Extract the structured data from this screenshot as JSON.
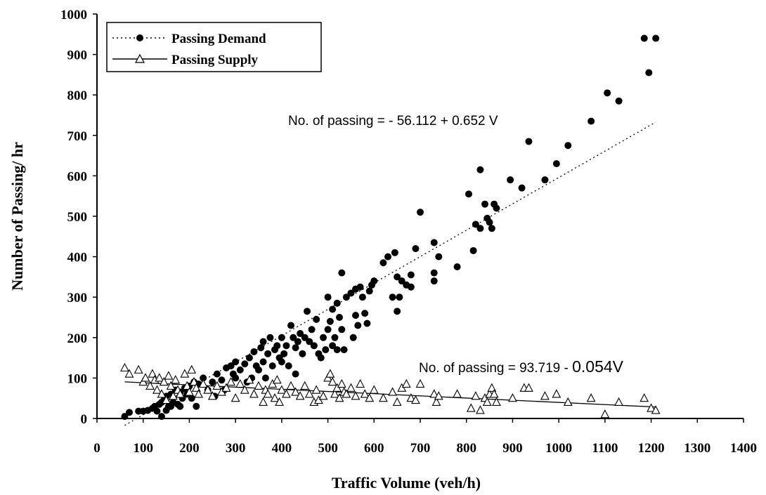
{
  "chart_data": {
    "type": "scatter",
    "xlabel": "Traffic Volume (veh/h)",
    "ylabel": "Number of Passing/ hr",
    "xlim": [
      0,
      1400
    ],
    "ylim": [
      0,
      1000
    ],
    "xticks": [
      0,
      100,
      200,
      300,
      400,
      500,
      600,
      700,
      800,
      900,
      1000,
      1100,
      1200,
      1300,
      1400
    ],
    "yticks": [
      0,
      100,
      200,
      300,
      400,
      500,
      600,
      700,
      800,
      900,
      1000
    ],
    "grid": false,
    "legend_position": "top-left",
    "series": [
      {
        "name": "Passing Demand",
        "marker": "filled-circle",
        "color": "#000000",
        "trend": {
          "intercept": -56.112,
          "slope": 0.652,
          "x_range": [
            60,
            1210
          ],
          "style": "dotted"
        },
        "points": [
          [
            60,
            5
          ],
          [
            70,
            15
          ],
          [
            90,
            18
          ],
          [
            100,
            18
          ],
          [
            110,
            20
          ],
          [
            120,
            25
          ],
          [
            125,
            30
          ],
          [
            130,
            18
          ],
          [
            135,
            35
          ],
          [
            140,
            40
          ],
          [
            140,
            5
          ],
          [
            145,
            45
          ],
          [
            150,
            20
          ],
          [
            150,
            55
          ],
          [
            155,
            30
          ],
          [
            160,
            60
          ],
          [
            160,
            30
          ],
          [
            165,
            40
          ],
          [
            170,
            70
          ],
          [
            175,
            35
          ],
          [
            180,
            65
          ],
          [
            180,
            30
          ],
          [
            185,
            50
          ],
          [
            190,
            75
          ],
          [
            195,
            60
          ],
          [
            200,
            80
          ],
          [
            205,
            50
          ],
          [
            210,
            90
          ],
          [
            215,
            30
          ],
          [
            220,
            85
          ],
          [
            230,
            100
          ],
          [
            240,
            70
          ],
          [
            250,
            90
          ],
          [
            255,
            55
          ],
          [
            260,
            110
          ],
          [
            270,
            95
          ],
          [
            275,
            70
          ],
          [
            280,
            125
          ],
          [
            290,
            130
          ],
          [
            295,
            110
          ],
          [
            300,
            140
          ],
          [
            300,
            100
          ],
          [
            310,
            120
          ],
          [
            320,
            135
          ],
          [
            325,
            90
          ],
          [
            330,
            150
          ],
          [
            335,
            100
          ],
          [
            340,
            165
          ],
          [
            345,
            130
          ],
          [
            350,
            120
          ],
          [
            355,
            175
          ],
          [
            360,
            140
          ],
          [
            360,
            190
          ],
          [
            365,
            100
          ],
          [
            370,
            160
          ],
          [
            375,
            200
          ],
          [
            380,
            130
          ],
          [
            385,
            170
          ],
          [
            390,
            180
          ],
          [
            395,
            150
          ],
          [
            400,
            200
          ],
          [
            400,
            140
          ],
          [
            405,
            160
          ],
          [
            410,
            180
          ],
          [
            415,
            130
          ],
          [
            420,
            230
          ],
          [
            425,
            200
          ],
          [
            430,
            175
          ],
          [
            430,
            110
          ],
          [
            435,
            190
          ],
          [
            440,
            210
          ],
          [
            445,
            160
          ],
          [
            450,
            200
          ],
          [
            455,
            265
          ],
          [
            460,
            190
          ],
          [
            465,
            220
          ],
          [
            470,
            180
          ],
          [
            475,
            245
          ],
          [
            480,
            160
          ],
          [
            485,
            150
          ],
          [
            490,
            200
          ],
          [
            495,
            170
          ],
          [
            500,
            220
          ],
          [
            500,
            300
          ],
          [
            505,
            240
          ],
          [
            510,
            180
          ],
          [
            510,
            270
          ],
          [
            515,
            200
          ],
          [
            520,
            285
          ],
          [
            520,
            170
          ],
          [
            525,
            250
          ],
          [
            530,
            360
          ],
          [
            530,
            220
          ],
          [
            535,
            170
          ],
          [
            540,
            300
          ],
          [
            550,
            310
          ],
          [
            555,
            200
          ],
          [
            560,
            255
          ],
          [
            560,
            320
          ],
          [
            565,
            230
          ],
          [
            570,
            325
          ],
          [
            575,
            300
          ],
          [
            580,
            260
          ],
          [
            585,
            235
          ],
          [
            590,
            315
          ],
          [
            595,
            330
          ],
          [
            600,
            340
          ],
          [
            620,
            385
          ],
          [
            630,
            400
          ],
          [
            640,
            300
          ],
          [
            645,
            410
          ],
          [
            650,
            350
          ],
          [
            650,
            265
          ],
          [
            655,
            300
          ],
          [
            660,
            340
          ],
          [
            670,
            330
          ],
          [
            680,
            355
          ],
          [
            680,
            325
          ],
          [
            690,
            420
          ],
          [
            700,
            510
          ],
          [
            730,
            435
          ],
          [
            730,
            360
          ],
          [
            730,
            340
          ],
          [
            740,
            400
          ],
          [
            780,
            375
          ],
          [
            805,
            555
          ],
          [
            815,
            415
          ],
          [
            820,
            480
          ],
          [
            830,
            615
          ],
          [
            830,
            470
          ],
          [
            840,
            530
          ],
          [
            845,
            495
          ],
          [
            850,
            485
          ],
          [
            855,
            470
          ],
          [
            860,
            530
          ],
          [
            865,
            520
          ],
          [
            895,
            590
          ],
          [
            920,
            570
          ],
          [
            935,
            685
          ],
          [
            970,
            590
          ],
          [
            995,
            630
          ],
          [
            1020,
            675
          ],
          [
            1070,
            735
          ],
          [
            1105,
            805
          ],
          [
            1130,
            785
          ],
          [
            1185,
            940
          ],
          [
            1195,
            855
          ],
          [
            1210,
            940
          ]
        ]
      },
      {
        "name": "Passing Supply",
        "marker": "open-triangle",
        "color": "#000000",
        "trend": {
          "intercept": 93.719,
          "slope": -0.054,
          "x_range": [
            60,
            1210
          ],
          "style": "solid"
        },
        "points": [
          [
            60,
            125
          ],
          [
            70,
            110
          ],
          [
            90,
            120
          ],
          [
            100,
            90
          ],
          [
            105,
            100
          ],
          [
            115,
            80
          ],
          [
            120,
            110
          ],
          [
            125,
            95
          ],
          [
            130,
            70
          ],
          [
            135,
            100
          ],
          [
            140,
            60
          ],
          [
            145,
            90
          ],
          [
            150,
            45
          ],
          [
            155,
            105
          ],
          [
            160,
            80
          ],
          [
            165,
            55
          ],
          [
            170,
            95
          ],
          [
            175,
            70
          ],
          [
            180,
            60
          ],
          [
            190,
            110
          ],
          [
            195,
            80
          ],
          [
            200,
            65
          ],
          [
            205,
            120
          ],
          [
            210,
            90
          ],
          [
            215,
            75
          ],
          [
            220,
            60
          ],
          [
            230,
            85
          ],
          [
            240,
            70
          ],
          [
            250,
            55
          ],
          [
            260,
            80
          ],
          [
            270,
            65
          ],
          [
            280,
            75
          ],
          [
            290,
            90
          ],
          [
            300,
            50
          ],
          [
            310,
            85
          ],
          [
            320,
            70
          ],
          [
            330,
            95
          ],
          [
            340,
            60
          ],
          [
            350,
            80
          ],
          [
            360,
            40
          ],
          [
            365,
            70
          ],
          [
            370,
            60
          ],
          [
            380,
            85
          ],
          [
            385,
            50
          ],
          [
            390,
            95
          ],
          [
            395,
            40
          ],
          [
            400,
            70
          ],
          [
            410,
            60
          ],
          [
            420,
            80
          ],
          [
            430,
            65
          ],
          [
            440,
            55
          ],
          [
            450,
            80
          ],
          [
            460,
            60
          ],
          [
            470,
            40
          ],
          [
            475,
            70
          ],
          [
            480,
            45
          ],
          [
            490,
            55
          ],
          [
            500,
            100
          ],
          [
            505,
            110
          ],
          [
            510,
            90
          ],
          [
            515,
            60
          ],
          [
            520,
            75
          ],
          [
            525,
            50
          ],
          [
            530,
            85
          ],
          [
            535,
            65
          ],
          [
            540,
            60
          ],
          [
            550,
            75
          ],
          [
            560,
            55
          ],
          [
            570,
            85
          ],
          [
            580,
            60
          ],
          [
            590,
            50
          ],
          [
            600,
            70
          ],
          [
            620,
            50
          ],
          [
            640,
            65
          ],
          [
            650,
            40
          ],
          [
            660,
            75
          ],
          [
            670,
            85
          ],
          [
            680,
            50
          ],
          [
            690,
            45
          ],
          [
            700,
            85
          ],
          [
            730,
            60
          ],
          [
            735,
            40
          ],
          [
            740,
            55
          ],
          [
            780,
            60
          ],
          [
            810,
            25
          ],
          [
            820,
            55
          ],
          [
            830,
            20
          ],
          [
            840,
            50
          ],
          [
            845,
            40
          ],
          [
            850,
            60
          ],
          [
            855,
            75
          ],
          [
            860,
            60
          ],
          [
            865,
            40
          ],
          [
            900,
            50
          ],
          [
            925,
            75
          ],
          [
            935,
            75
          ],
          [
            970,
            55
          ],
          [
            995,
            60
          ],
          [
            1020,
            40
          ],
          [
            1070,
            50
          ],
          [
            1100,
            10
          ],
          [
            1130,
            40
          ],
          [
            1185,
            50
          ],
          [
            1200,
            25
          ],
          [
            1210,
            20
          ]
        ]
      }
    ],
    "annotations": [
      {
        "text": "No. of passing = - 56.112 + 0.652 V",
        "x": 950,
        "y": 738,
        "size": "normal"
      },
      {
        "text_prefix": "No. of passing = 93.719 - ",
        "text_big": "0.054V",
        "x": 880,
        "y": 125,
        "size": "mixed"
      }
    ]
  }
}
